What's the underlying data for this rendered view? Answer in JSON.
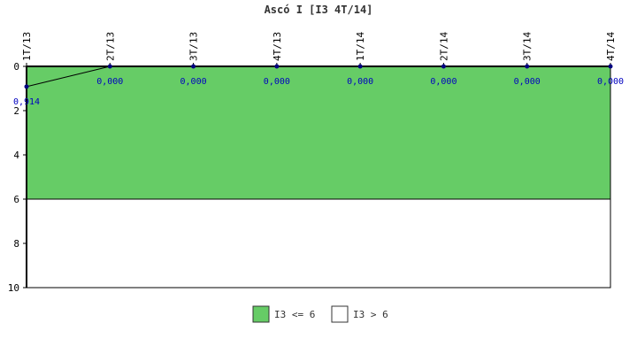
{
  "chart_data": {
    "type": "line",
    "title": "Ascó I [I3 4T/14]",
    "categories": [
      "1T/13",
      "2T/13",
      "3T/13",
      "4T/13",
      "1T/14",
      "2T/14",
      "3T/14",
      "4T/14"
    ],
    "series": [
      {
        "values": [
          0.914,
          0,
          0,
          0,
          0,
          0,
          0,
          0
        ],
        "labels": [
          "0,914",
          "0,000",
          "0,000",
          "0,000",
          "0,000",
          "0,000",
          "0,000",
          "0,000"
        ],
        "color": "#000080"
      }
    ],
    "y_axis": {
      "min": 0,
      "max": 10,
      "inverted": true,
      "ticks": [
        "0",
        "2",
        "4",
        "6",
        "8",
        "10"
      ]
    },
    "x_axis_position": "top",
    "bands": [
      {
        "name": "I3 <= 6",
        "from": 0,
        "to": 6,
        "color": "#66cc66"
      },
      {
        "name": "I3 > 6",
        "from": 6,
        "to": 10,
        "color": "#ffffff"
      }
    ],
    "legend": {
      "placement": "bottom",
      "items": [
        {
          "label": "I3 <= 6",
          "color": "#66cc66"
        },
        {
          "label": "I3 > 6",
          "color": "#ffffff"
        }
      ]
    },
    "grid": false
  }
}
